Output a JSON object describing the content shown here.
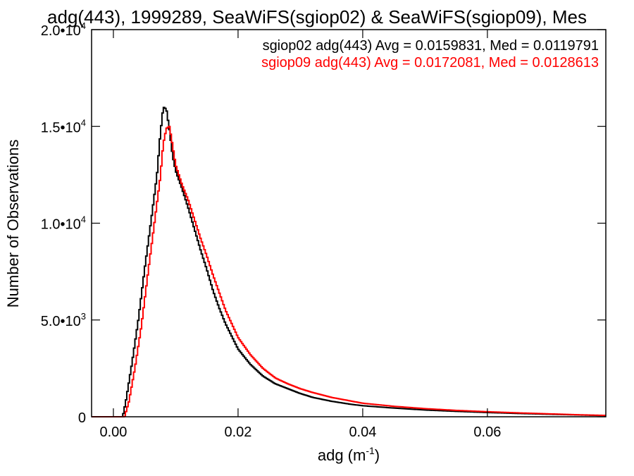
{
  "chart_data": {
    "type": "line",
    "title": "adg(443), 1999289, SeaWiFS(sgiop02) & SeaWiFS(sgiop09), Mes",
    "xlabel": "adg (m",
    "xlabel_exp": "-1",
    "xlabel_close": ")",
    "ylabel": "Number of Observations",
    "xlim": [
      -0.0035,
      0.079
    ],
    "ylim": [
      0,
      20000
    ],
    "x_ticks": [
      {
        "value": 0.0,
        "label": "0.00"
      },
      {
        "value": 0.02,
        "label": "0.02"
      },
      {
        "value": 0.04,
        "label": "0.04"
      },
      {
        "value": 0.06,
        "label": "0.06"
      }
    ],
    "y_ticks": [
      {
        "value": 0,
        "mant": "0",
        "exp": ""
      },
      {
        "value": 5000,
        "mant": "5.0•10",
        "exp": "3"
      },
      {
        "value": 10000,
        "mant": "1.0•10",
        "exp": "4"
      },
      {
        "value": 15000,
        "mant": "1.5•10",
        "exp": "4"
      },
      {
        "value": 20000,
        "mant": "2.0•10",
        "exp": "4"
      }
    ],
    "grid": false,
    "legend_position": "top-right",
    "series": [
      {
        "name": "sgiop02 adg(443) Avg = 0.0159831, Med = 0.0119791",
        "color": "#000000",
        "x": [
          -0.0035,
          0.0015,
          0.002,
          0.003,
          0.004,
          0.005,
          0.006,
          0.007,
          0.0075,
          0.008,
          0.0085,
          0.009,
          0.0095,
          0.01,
          0.011,
          0.012,
          0.013,
          0.014,
          0.015,
          0.016,
          0.017,
          0.018,
          0.02,
          0.022,
          0.024,
          0.026,
          0.028,
          0.03,
          0.032,
          0.035,
          0.038,
          0.04,
          0.045,
          0.05,
          0.055,
          0.06,
          0.065,
          0.07,
          0.075,
          0.079
        ],
        "y": [
          0,
          0,
          800,
          2800,
          5000,
          7600,
          10000,
          12500,
          14500,
          16000,
          15900,
          14800,
          13500,
          12700,
          11800,
          10800,
          9700,
          8600,
          7600,
          6500,
          5600,
          4800,
          3500,
          2700,
          2100,
          1700,
          1450,
          1200,
          1000,
          800,
          650,
          570,
          450,
          350,
          280,
          220,
          170,
          130,
          90,
          60
        ]
      },
      {
        "name": "sgiop09 adg(443) Avg = 0.0172081, Med = 0.0128613",
        "color": "#ff0000",
        "x": [
          -0.0035,
          0.0018,
          0.0025,
          0.0035,
          0.0045,
          0.0055,
          0.0065,
          0.0075,
          0.008,
          0.0085,
          0.009,
          0.0095,
          0.01,
          0.011,
          0.012,
          0.013,
          0.014,
          0.015,
          0.016,
          0.017,
          0.018,
          0.02,
          0.022,
          0.024,
          0.026,
          0.028,
          0.03,
          0.032,
          0.035,
          0.038,
          0.04,
          0.045,
          0.05,
          0.055,
          0.06,
          0.065,
          0.07,
          0.075,
          0.079
        ],
        "y": [
          0,
          0,
          800,
          2600,
          4700,
          7300,
          9800,
          12300,
          14100,
          14900,
          15000,
          14000,
          13000,
          12000,
          11200,
          10200,
          9200,
          8300,
          7300,
          6400,
          5500,
          4100,
          3200,
          2500,
          2000,
          1700,
          1450,
          1250,
          1000,
          820,
          700,
          540,
          420,
          330,
          260,
          200,
          150,
          100,
          70
        ]
      }
    ]
  }
}
